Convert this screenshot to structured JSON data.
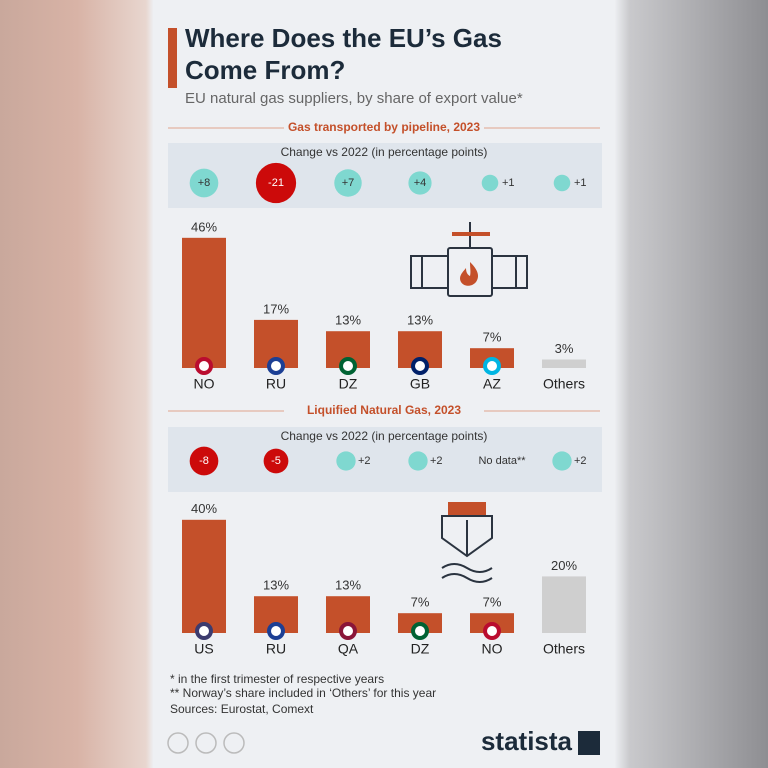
{
  "header": {
    "title_lines": [
      "Where Does the EU’s Gas",
      "Come From?"
    ],
    "subtitle": "EU natural gas suppliers, by share of export value*"
  },
  "chart_data": [
    {
      "type": "bar",
      "section_title": "Gas transported by pipeline, 2023",
      "change_title": "Change vs 2022 (in percentage points)",
      "categories": [
        "NO",
        "RU",
        "DZ",
        "GB",
        "AZ",
        "Others"
      ],
      "values": [
        46,
        17,
        13,
        13,
        7,
        3
      ],
      "value_labels": [
        "46%",
        "17%",
        "13%",
        "13%",
        "7%",
        "3%"
      ],
      "colors": [
        "#c4502a",
        "#c4502a",
        "#c4502a",
        "#c4502a",
        "#c4502a",
        "#cfcfcf"
      ],
      "change_values": [
        8,
        -21,
        7,
        4,
        1,
        1
      ],
      "change_labels": [
        "+8",
        "-21",
        "+7",
        "+4",
        "+1",
        "+1"
      ]
    },
    {
      "type": "bar",
      "section_title": "Liquified Natural Gas, 2023",
      "change_title": "Change vs 2022 (in percentage points)",
      "categories": [
        "US",
        "RU",
        "QA",
        "DZ",
        "NO",
        "Others"
      ],
      "values": [
        40,
        13,
        13,
        7,
        7,
        20
      ],
      "value_labels": [
        "40%",
        "13%",
        "13%",
        "7%",
        "7%",
        "20%"
      ],
      "colors": [
        "#c4502a",
        "#c4502a",
        "#c4502a",
        "#c4502a",
        "#c4502a",
        "#cfcfcf"
      ],
      "change_values": [
        -8,
        -5,
        2,
        2,
        null,
        2
      ],
      "change_labels": [
        "-8",
        "-5",
        "+2",
        "+2",
        "No data**",
        "+2"
      ]
    }
  ],
  "footer": {
    "notes": [
      "*   in the first trimester of respective years",
      "** Norway’s share included in ‘Others’ for this year"
    ],
    "sources": "Sources: Eurostat, Comext",
    "brand": "statista"
  }
}
